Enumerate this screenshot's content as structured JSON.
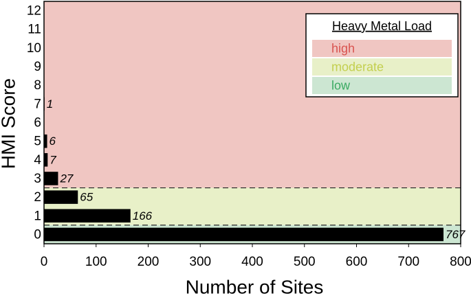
{
  "chart_data": {
    "type": "hbar",
    "x_label": "Number of Sites",
    "y_label": "HMI Score",
    "categories": [
      "0",
      "1",
      "2",
      "3",
      "4",
      "5",
      "6",
      "7",
      "8",
      "9",
      "10",
      "11",
      "12"
    ],
    "values": [
      767,
      166,
      65,
      27,
      7,
      6,
      null,
      1,
      null,
      null,
      null,
      null,
      null
    ],
    "color": "#000000",
    "xlim": [
      0,
      800
    ],
    "xticks": [
      0,
      100,
      200,
      300,
      400,
      500,
      600,
      700,
      800
    ],
    "legend": {
      "title": "Heavy Metal Load",
      "corner": "top-right"
    },
    "bands": [
      {
        "name": "high",
        "color": "#f0c6c2",
        "text_color": "#d9534f",
        "from": 3,
        "to": 12
      },
      {
        "name": "moderate",
        "color": "#e8f0c8",
        "text_color": "#c3cf4e",
        "from": 1,
        "to": 2
      },
      {
        "name": "low",
        "color": "#cce6d2",
        "text_color": "#3aaa62",
        "from": 0,
        "to": 0
      }
    ]
  }
}
